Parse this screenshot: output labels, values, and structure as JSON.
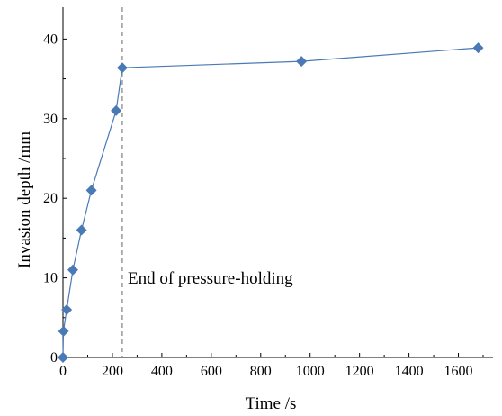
{
  "chart_data": {
    "type": "scatter",
    "title": "",
    "xlabel": "Time /s",
    "ylabel": "Invasion depth /mm",
    "xlim": [
      0,
      1740
    ],
    "ylim": [
      0,
      44
    ],
    "xticks": [
      0,
      200,
      400,
      600,
      800,
      1000,
      1200,
      1400,
      1600
    ],
    "yticks": [
      0,
      10,
      20,
      30,
      40
    ],
    "grid": false,
    "series": [
      {
        "color": "#4a7ab5",
        "marker": "diamond",
        "line": true,
        "x": [
          0,
          2,
          15,
          40,
          75,
          115,
          215,
          240,
          965,
          1680
        ],
        "y": [
          0,
          3.3,
          6,
          11,
          16,
          21,
          31,
          36.4,
          37.2,
          38.9
        ]
      }
    ],
    "reference_line": {
      "orientation": "vertical",
      "x": 240,
      "style": "dashed",
      "color": "#808080"
    },
    "annotation": {
      "text": "End of pressure-holding"
    }
  }
}
